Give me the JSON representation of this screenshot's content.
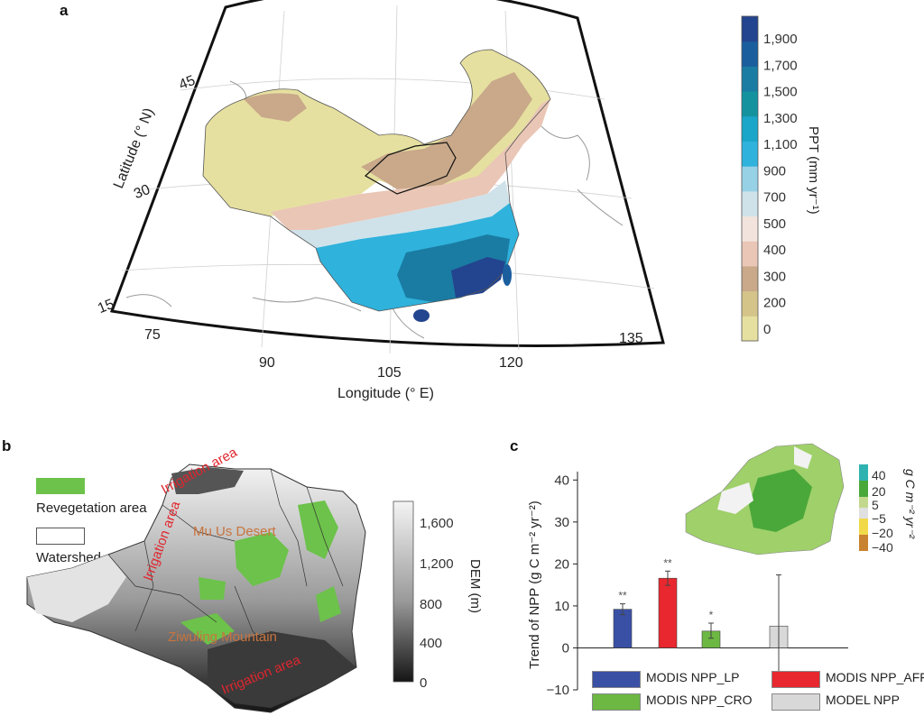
{
  "panels": {
    "a": {
      "letter": "a",
      "xlabel": "Longitude (° E)",
      "ylabel": "Latitude (° N)",
      "lon_ticks": [
        "75",
        "90",
        "105",
        "120",
        "135"
      ],
      "lat_ticks": [
        "45",
        "30",
        "15"
      ],
      "colorbar": {
        "title": "PPT (mm yr⁻¹)",
        "ticks": [
          "1,900",
          "1,700",
          "1,500",
          "1,300",
          "1,100",
          "900",
          "700",
          "500",
          "400",
          "300",
          "200",
          "0"
        ],
        "colors": [
          "#e6e0a0",
          "#d4c48a",
          "#c9a98a",
          "#eac6b6",
          "#f2e4dc",
          "#cfe2ea",
          "#96d1e6",
          "#2fb2dc",
          "#1aa6c8",
          "#14939f",
          "#1a7ca3",
          "#1a5e9e",
          "#23448e"
        ]
      }
    },
    "b": {
      "letter": "b",
      "legend": {
        "revegetation": "Revegetation area",
        "watershed": "Watershed"
      },
      "map_labels": {
        "irrigation_top": "Irrigation area",
        "irrigation_left": "Irrigation area",
        "irrigation_bottom": "Irrigation area",
        "mu_us": "Mu Us Desert",
        "ziwuling": "Ziwuling Mountain"
      },
      "colorbar": {
        "title": "DEM (m)",
        "ticks": [
          "1,600",
          "1,200",
          "800",
          "400",
          "0"
        ]
      }
    },
    "c": {
      "letter": "c",
      "inset_colorbar": {
        "title": "g C m⁻² yr⁻²",
        "ticks": [
          "40",
          "20",
          "5",
          "−5",
          "−20",
          "−40"
        ]
      }
    }
  },
  "chart_data": {
    "type": "bar",
    "ylabel": "Trend of NPP (g C m⁻² yr⁻²)",
    "ylim": [
      -10,
      42
    ],
    "yticks": [
      40,
      30,
      20,
      10,
      0,
      -10
    ],
    "grid": false,
    "legend_position": "bottom",
    "categories": [
      "MODIS NPP_LP",
      "MODIS NPP_AFF",
      "MODIS NPP_CRO",
      "MODEL NPP"
    ],
    "values": [
      9.2,
      16.6,
      4.0,
      5.2
    ],
    "err_low": [
      7.9,
      14.9,
      2.3,
      -6.9
    ],
    "err_high": [
      10.5,
      18.3,
      5.9,
      17.4
    ],
    "significance": [
      "**",
      "**",
      "*",
      ""
    ],
    "colors": [
      "#3950a5",
      "#e8282e",
      "#6cb843",
      "#d8d8d8"
    ],
    "legend": [
      "MODIS NPP_LP",
      "MODIS NPP_AFF",
      "MODIS NPP_CRO",
      "MODEL NPP"
    ]
  }
}
